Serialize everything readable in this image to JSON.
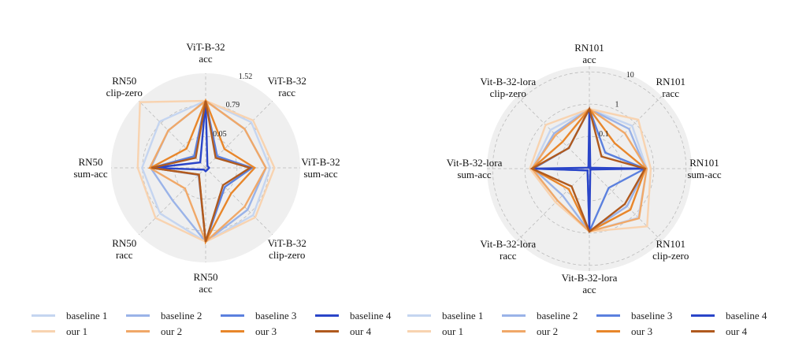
{
  "series_styles": [
    {
      "name": "baseline 1",
      "color": "#c5d5f0"
    },
    {
      "name": "baseline 2",
      "color": "#9ab3e8"
    },
    {
      "name": "baseline 3",
      "color": "#5b80de"
    },
    {
      "name": "baseline 4",
      "color": "#2a45c8"
    },
    {
      "name": "our 1",
      "color": "#f8d3b0"
    },
    {
      "name": "our 2",
      "color": "#f0a868"
    },
    {
      "name": "our 3",
      "color": "#e8862a"
    },
    {
      "name": "our 4",
      "color": "#b05a1e"
    }
  ],
  "chart_data": [
    {
      "type": "radar",
      "scale": "linear",
      "rlim": [
        -0.68,
        1.52
      ],
      "rticks": [
        "0.05",
        "0.79",
        "1.52"
      ],
      "rtick_values": [
        0.05,
        0.79,
        1.52
      ],
      "grid": true,
      "axes": [
        [
          "ViT-B-32",
          "acc"
        ],
        [
          "ViT-B-32",
          "racc"
        ],
        [
          "ViT-B-32",
          "sum-acc"
        ],
        [
          "ViT-B-32",
          "clip-zero"
        ],
        [
          "RN50",
          "acc"
        ],
        [
          "RN50",
          "racc"
        ],
        [
          "RN50",
          "sum-acc"
        ],
        [
          "RN50",
          "clip-zero"
        ]
      ],
      "legend": "bottom",
      "series": [
        {
          "name": "baseline 1",
          "values": [
            0.88,
            0.82,
            0.82,
            0.88,
            1.04,
            0.82,
            0.8,
            0.84
          ]
        },
        {
          "name": "baseline 2",
          "values": [
            0.88,
            0.6,
            0.72,
            0.7,
            1.04,
            0.4,
            0.6,
            0.55
          ]
        },
        {
          "name": "baseline 3",
          "values": [
            0.88,
            -0.3,
            0.4,
            -0.05,
            1.04,
            -0.45,
            0.58,
            -0.3
          ]
        },
        {
          "name": "baseline 4",
          "values": [
            0.88,
            -0.62,
            -0.6,
            -0.62,
            -0.6,
            -0.62,
            0.55,
            -0.5
          ]
        },
        {
          "name": "our 1",
          "values": [
            0.88,
            0.88,
            0.92,
            0.95,
            1.04,
            0.97,
            0.9,
            1.48
          ]
        },
        {
          "name": "our 2",
          "values": [
            0.88,
            0.6,
            0.72,
            0.6,
            1.04,
            0.0,
            0.62,
            0.55
          ]
        },
        {
          "name": "our 3",
          "values": [
            0.88,
            -0.06,
            0.46,
            0.16,
            1.04,
            -0.46,
            0.6,
            -0.05
          ]
        },
        {
          "name": "our 4",
          "values": [
            0.88,
            -0.35,
            0.35,
            -0.11,
            1.04,
            -0.46,
            0.58,
            -0.35
          ]
        }
      ]
    },
    {
      "type": "radar",
      "scale": "log",
      "rlim": [
        0.01,
        15
      ],
      "rticks": [
        "0.1",
        "1",
        "10"
      ],
      "rtick_values": [
        0.1,
        1,
        10
      ],
      "grid": true,
      "axes": [
        [
          "RN101",
          "acc"
        ],
        [
          "RN101",
          "racc"
        ],
        [
          "RN101",
          "sum-acc"
        ],
        [
          "RN101",
          "clip-zero"
        ],
        [
          "Vit-B-32-lora",
          "acc"
        ],
        [
          "Vit-B-32-lora",
          "racc"
        ],
        [
          "Vit-B-32-lora",
          "sum-acc"
        ],
        [
          "Vit-B-32-lora",
          "clip-zero"
        ]
      ],
      "legend": "bottom",
      "series": [
        {
          "name": "baseline 1",
          "values": [
            0.71,
            0.75,
            0.6,
            1.4,
            0.89,
            0.25,
            0.6,
            0.5
          ]
        },
        {
          "name": "baseline 2",
          "values": [
            0.71,
            0.55,
            0.55,
            0.45,
            0.89,
            0.15,
            0.55,
            0.35
          ]
        },
        {
          "name": "baseline 3",
          "values": [
            0.71,
            0.05,
            0.53,
            0.07,
            0.89,
            0.012,
            0.55,
            0.08
          ]
        },
        {
          "name": "baseline 4",
          "values": [
            0.71,
            0.011,
            0.53,
            0.011,
            0.89,
            0.012,
            0.53,
            0.011
          ]
        },
        {
          "name": "our 1",
          "values": [
            0.71,
            1.4,
            0.8,
            3.4,
            0.89,
            0.3,
            0.7,
            0.83
          ]
        },
        {
          "name": "our 2",
          "values": [
            0.71,
            0.36,
            0.6,
            1.5,
            0.89,
            0.25,
            0.6,
            0.3
          ]
        },
        {
          "name": "our 3",
          "values": [
            0.71,
            0.13,
            0.55,
            0.63,
            0.89,
            0.08,
            0.6,
            0.15
          ]
        },
        {
          "name": "our 4",
          "values": [
            0.71,
            0.034,
            0.53,
            0.36,
            0.89,
            0.06,
            0.6,
            0.08
          ]
        }
      ]
    }
  ]
}
